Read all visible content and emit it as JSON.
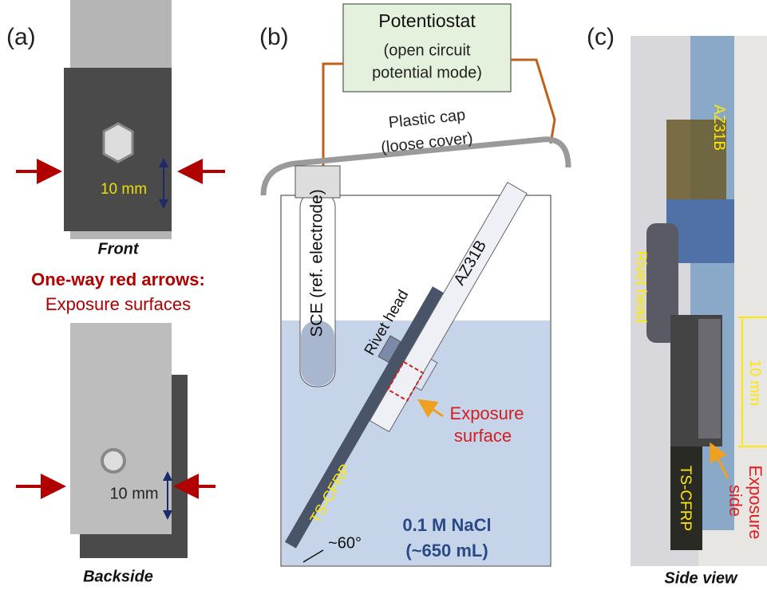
{
  "panel_a": {
    "label": "(a)",
    "front_dimension": "10 mm",
    "front_caption": "Front",
    "legend_title": "One-way red arrows:",
    "legend_text": "Exposure surfaces",
    "back_dimension": "10 mm",
    "back_caption": "Backside"
  },
  "panel_b": {
    "label": "(b)",
    "box_title": "Potentiostat",
    "box_line2": "(open circuit",
    "box_line3": "potential mode)",
    "cap_line1": "Plastic cap",
    "cap_line2": "(loose cover)",
    "electrode": "SCE (ref. electrode)",
    "plate": "AZ31B",
    "rivet": "Rivet head",
    "exposure_line1": "Exposure",
    "exposure_line2": "surface",
    "cfrp": "TS-CFRP",
    "solution": "0.1 M NaCl",
    "volume": "(~650 mL)",
    "angle": "~60°"
  },
  "panel_c": {
    "label": "(c)",
    "plate": "AZ31B",
    "rivet": "Rivet head",
    "dimension": "10 mm",
    "cfrp": "TS-CFRP",
    "exposure_line1": "Exposure",
    "exposure_line2": "side",
    "caption": "Side view"
  }
}
